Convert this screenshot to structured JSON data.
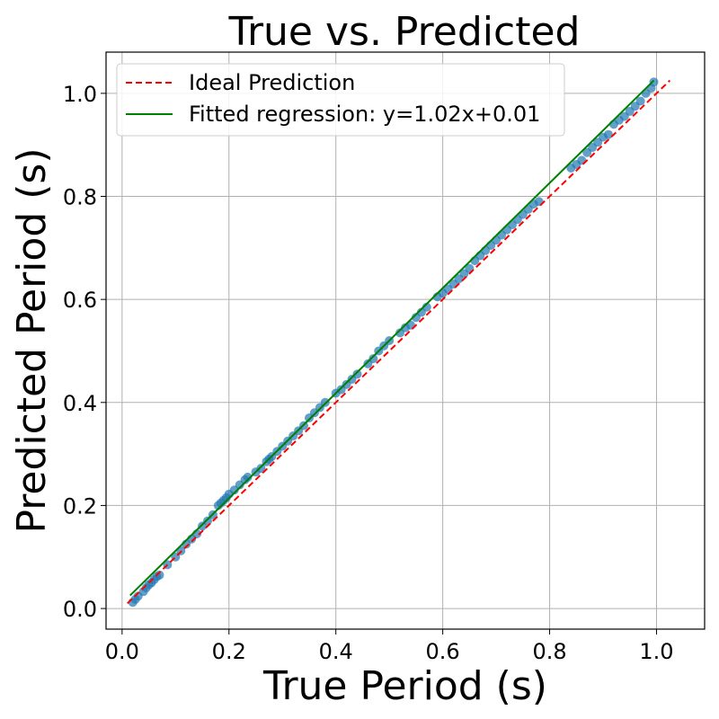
{
  "chart_data": {
    "type": "scatter",
    "title": "True vs. Predicted",
    "xlabel": "True Period (s)",
    "ylabel": "Predicted Period (s)",
    "xlim": [
      -0.03,
      1.09
    ],
    "ylim": [
      -0.04,
      1.08
    ],
    "xticks": [
      "0.0",
      "0.2",
      "0.4",
      "0.6",
      "0.8",
      "1.0"
    ],
    "yticks": [
      "0.0",
      "0.2",
      "0.4",
      "0.6",
      "0.8",
      "1.0"
    ],
    "grid": true,
    "legend_position": "top-left",
    "legend": [
      {
        "label": "Ideal Prediction",
        "color": "#ff0000",
        "style": "dashed"
      },
      {
        "label": "Fitted regression: y=1.02x+0.01",
        "color": "#008000",
        "style": "solid"
      }
    ],
    "ideal_line": {
      "x": [
        0.01,
        1.025
      ],
      "y": [
        0.01,
        1.025
      ]
    },
    "regression_line": {
      "slope": 1.02,
      "intercept": 0.01,
      "x": [
        0.015,
        0.995
      ]
    },
    "points_color": "#1f77b4",
    "points": [
      [
        0.02,
        0.012
      ],
      [
        0.025,
        0.018
      ],
      [
        0.03,
        0.024
      ],
      [
        0.04,
        0.033
      ],
      [
        0.045,
        0.04
      ],
      [
        0.05,
        0.046
      ],
      [
        0.055,
        0.05
      ],
      [
        0.06,
        0.056
      ],
      [
        0.065,
        0.062
      ],
      [
        0.07,
        0.065
      ],
      [
        0.085,
        0.085
      ],
      [
        0.1,
        0.1
      ],
      [
        0.11,
        0.112
      ],
      [
        0.12,
        0.125
      ],
      [
        0.13,
        0.135
      ],
      [
        0.14,
        0.145
      ],
      [
        0.15,
        0.16
      ],
      [
        0.16,
        0.17
      ],
      [
        0.17,
        0.182
      ],
      [
        0.18,
        0.2
      ],
      [
        0.185,
        0.205
      ],
      [
        0.19,
        0.21
      ],
      [
        0.195,
        0.215
      ],
      [
        0.2,
        0.222
      ],
      [
        0.21,
        0.23
      ],
      [
        0.22,
        0.24
      ],
      [
        0.23,
        0.25
      ],
      [
        0.235,
        0.255
      ],
      [
        0.25,
        0.265
      ],
      [
        0.26,
        0.272
      ],
      [
        0.27,
        0.285
      ],
      [
        0.275,
        0.29
      ],
      [
        0.28,
        0.295
      ],
      [
        0.29,
        0.305
      ],
      [
        0.3,
        0.315
      ],
      [
        0.31,
        0.325
      ],
      [
        0.32,
        0.335
      ],
      [
        0.33,
        0.345
      ],
      [
        0.34,
        0.355
      ],
      [
        0.35,
        0.37
      ],
      [
        0.36,
        0.38
      ],
      [
        0.37,
        0.39
      ],
      [
        0.38,
        0.4
      ],
      [
        0.4,
        0.418
      ],
      [
        0.41,
        0.425
      ],
      [
        0.42,
        0.435
      ],
      [
        0.43,
        0.445
      ],
      [
        0.44,
        0.455
      ],
      [
        0.46,
        0.475
      ],
      [
        0.47,
        0.485
      ],
      [
        0.48,
        0.5
      ],
      [
        0.49,
        0.51
      ],
      [
        0.5,
        0.52
      ],
      [
        0.52,
        0.535
      ],
      [
        0.53,
        0.545
      ],
      [
        0.54,
        0.55
      ],
      [
        0.55,
        0.565
      ],
      [
        0.56,
        0.575
      ],
      [
        0.57,
        0.585
      ],
      [
        0.59,
        0.605
      ],
      [
        0.6,
        0.612
      ],
      [
        0.61,
        0.62
      ],
      [
        0.62,
        0.63
      ],
      [
        0.63,
        0.64
      ],
      [
        0.64,
        0.65
      ],
      [
        0.65,
        0.66
      ],
      [
        0.66,
        0.675
      ],
      [
        0.67,
        0.685
      ],
      [
        0.68,
        0.695
      ],
      [
        0.69,
        0.705
      ],
      [
        0.7,
        0.715
      ],
      [
        0.71,
        0.725
      ],
      [
        0.72,
        0.735
      ],
      [
        0.73,
        0.745
      ],
      [
        0.74,
        0.755
      ],
      [
        0.75,
        0.765
      ],
      [
        0.76,
        0.775
      ],
      [
        0.77,
        0.785
      ],
      [
        0.78,
        0.79
      ],
      [
        0.84,
        0.855
      ],
      [
        0.85,
        0.862
      ],
      [
        0.86,
        0.87
      ],
      [
        0.87,
        0.885
      ],
      [
        0.88,
        0.895
      ],
      [
        0.89,
        0.905
      ],
      [
        0.9,
        0.915
      ],
      [
        0.91,
        0.92
      ],
      [
        0.92,
        0.94
      ],
      [
        0.93,
        0.948
      ],
      [
        0.94,
        0.955
      ],
      [
        0.95,
        0.965
      ],
      [
        0.96,
        0.975
      ],
      [
        0.97,
        0.985
      ],
      [
        0.98,
        1.0
      ],
      [
        0.99,
        1.01
      ],
      [
        0.995,
        1.022
      ]
    ]
  }
}
